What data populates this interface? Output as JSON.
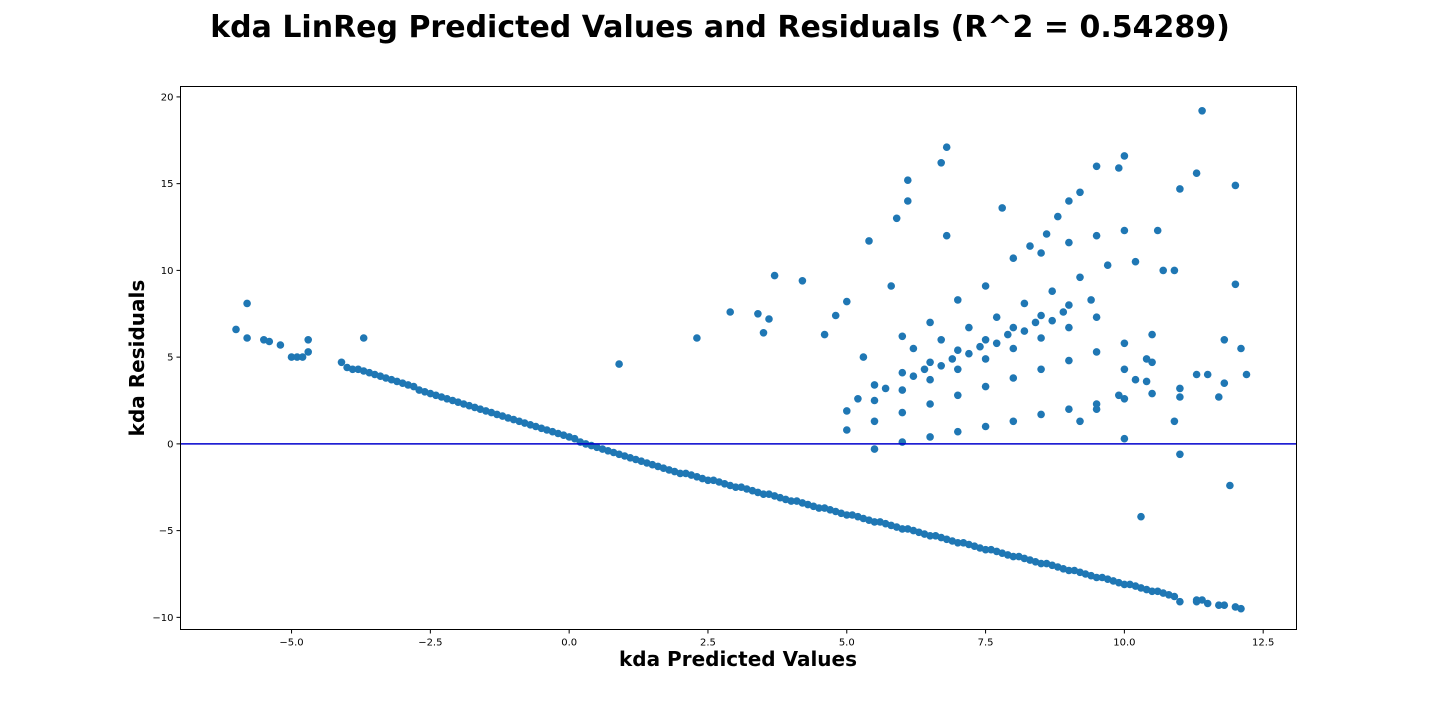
{
  "chart_data": {
    "type": "scatter",
    "title": "kda LinReg Predicted Values and Residuals (R^2 = 0.54289)",
    "xlabel": "kda Predicted Values",
    "ylabel": "kda Residuals",
    "xlim": [
      -7.0,
      13.1
    ],
    "ylim": [
      -10.7,
      20.6
    ],
    "xticks": [
      -5.0,
      -2.5,
      0.0,
      2.5,
      5.0,
      7.5,
      10.0,
      12.5
    ],
    "xtick_labels": [
      "−5.0",
      "−2.5",
      "0.0",
      "2.5",
      "5.0",
      "7.5",
      "10.0",
      "12.5"
    ],
    "yticks": [
      -10,
      -5,
      0,
      5,
      10,
      15,
      20
    ],
    "ytick_labels": [
      "−10",
      "−5",
      "0",
      "5",
      "10",
      "15",
      "20"
    ],
    "grid": false,
    "colors": {
      "points": "#1f77b4",
      "zero_line": "#0000cd"
    },
    "reference_line": {
      "y": 0
    },
    "points_x": [
      -6.0,
      -5.8,
      -5.8,
      -5.5,
      -5.4,
      -5.2,
      -5.0,
      -4.9,
      -4.8,
      -4.7,
      -4.7,
      -4.1,
      -4.0,
      -3.9,
      -3.8,
      -3.7,
      -3.7,
      -3.6,
      -3.5,
      -3.4,
      -3.3,
      -3.2,
      -3.1,
      -3.0,
      -2.9,
      -2.8,
      -2.7,
      -2.6,
      -2.5,
      -2.4,
      -2.3,
      -2.2,
      -2.1,
      -2.0,
      -1.9,
      -1.8,
      -1.7,
      -1.6,
      -1.5,
      -1.4,
      -1.3,
      -1.2,
      -1.1,
      -1.0,
      -0.9,
      -0.8,
      -0.7,
      -0.6,
      -0.5,
      -0.4,
      -0.3,
      -0.2,
      -0.1,
      0.0,
      0.1,
      0.2,
      0.3,
      0.4,
      0.5,
      0.6,
      0.7,
      0.8,
      0.9,
      1.0,
      1.1,
      1.2,
      1.3,
      1.4,
      1.5,
      1.6,
      1.7,
      1.8,
      1.9,
      2.0,
      2.1,
      2.2,
      2.3,
      2.4,
      2.5,
      2.6,
      2.7,
      2.8,
      2.9,
      3.0,
      3.1,
      3.2,
      3.3,
      3.4,
      3.5,
      3.6,
      3.7,
      3.8,
      3.9,
      4.0,
      4.1,
      4.2,
      4.3,
      4.4,
      4.5,
      4.6,
      4.7,
      4.8,
      4.9,
      5.0,
      5.1,
      5.2,
      5.3,
      5.4,
      5.5,
      5.6,
      5.7,
      5.8,
      5.9,
      6.0,
      6.1,
      6.2,
      6.3,
      6.4,
      6.5,
      6.6,
      6.7,
      6.8,
      6.9,
      7.0,
      7.1,
      7.2,
      7.3,
      7.4,
      7.5,
      7.6,
      7.7,
      7.8,
      7.9,
      8.0,
      8.1,
      8.2,
      8.3,
      8.4,
      8.5,
      8.6,
      8.7,
      8.8,
      8.9,
      9.0,
      9.1,
      9.2,
      9.3,
      9.4,
      9.5,
      9.6,
      9.7,
      9.8,
      9.9,
      10.0,
      10.1,
      10.2,
      10.3,
      10.4,
      10.5,
      10.6,
      10.7,
      10.8,
      10.9,
      11.0,
      11.3,
      11.3,
      11.4,
      11.5,
      11.7,
      11.8,
      12.0,
      12.1,
      12.2,
      0.9,
      2.3,
      2.9,
      3.4,
      3.5,
      3.6,
      3.7,
      4.2,
      4.6,
      4.8,
      5.0,
      5.3,
      5.4,
      5.8,
      5.9,
      6.1,
      6.1,
      6.7,
      6.8,
      6.8,
      7.8,
      8.3,
      8.6,
      8.8,
      9.0,
      9.2,
      9.5,
      9.9,
      10.0,
      10.2,
      10.4,
      10.6,
      10.7,
      11.0,
      11.3,
      11.4,
      11.7,
      11.8,
      12.0,
      12.1,
      6.0,
      6.5,
      7.0,
      7.5,
      8.0,
      8.5,
      9.0,
      9.5,
      10.0,
      10.5,
      6.2,
      6.7,
      7.2,
      7.7,
      8.2,
      8.7,
      9.2,
      9.7,
      10.2,
      6.4,
      6.9,
      7.4,
      7.9,
      8.4,
      8.9,
      9.4,
      9.9,
      5.5,
      6.0,
      6.5,
      7.0,
      7.5,
      8.0,
      8.5,
      9.0,
      9.5,
      5.2,
      5.7,
      6.2,
      6.7,
      7.2,
      7.7,
      8.2,
      8.7,
      9.2,
      5.0,
      5.5,
      6.0,
      6.5,
      7.0,
      7.5,
      8.0,
      8.5,
      9.0,
      9.5,
      10.0,
      5.0,
      5.5,
      6.0,
      6.5,
      7.0,
      7.5,
      8.0,
      8.5,
      9.0,
      9.5,
      10.0,
      10.5,
      11.0,
      5.5,
      6.0,
      6.5,
      7.0,
      7.5,
      8.0,
      8.5,
      9.0,
      9.5,
      10.0,
      10.5,
      11.0,
      11.5,
      10.0,
      10.4,
      10.9,
      11.3,
      12.0,
      10.9,
      11.0,
      11.8,
      11.9,
      10.3,
      10.6
    ],
    "points_y": [
      6.6,
      6.1,
      8.1,
      6.0,
      5.9,
      5.7,
      5.0,
      5.0,
      5.0,
      5.3,
      6.0,
      4.7,
      4.4,
      4.3,
      4.3,
      4.2,
      6.1,
      4.1,
      4.0,
      3.9,
      3.8,
      3.7,
      3.6,
      3.5,
      3.4,
      3.3,
      3.1,
      3.0,
      2.9,
      2.8,
      2.7,
      2.6,
      2.5,
      2.4,
      2.3,
      2.2,
      2.1,
      2.0,
      1.9,
      1.8,
      1.7,
      1.6,
      1.5,
      1.4,
      1.3,
      1.2,
      1.1,
      1.0,
      0.9,
      0.8,
      0.7,
      0.6,
      0.5,
      0.4,
      0.3,
      0.1,
      0.0,
      -0.1,
      -0.2,
      -0.3,
      -0.4,
      -0.5,
      -0.6,
      -0.7,
      -0.8,
      -0.9,
      -1.0,
      -1.1,
      -1.2,
      -1.3,
      -1.4,
      -1.5,
      -1.6,
      -1.7,
      -1.7,
      -1.8,
      -1.9,
      -2.0,
      -2.1,
      -2.1,
      -2.2,
      -2.3,
      -2.4,
      -2.5,
      -2.5,
      -2.6,
      -2.7,
      -2.8,
      -2.9,
      -2.9,
      -3.0,
      -3.1,
      -3.2,
      -3.3,
      -3.3,
      -3.4,
      -3.5,
      -3.6,
      -3.7,
      -3.7,
      -3.8,
      -3.9,
      -4.0,
      -4.1,
      -4.1,
      -4.2,
      -4.3,
      -4.4,
      -4.5,
      -4.5,
      -4.6,
      -4.7,
      -4.8,
      -4.9,
      -4.9,
      -5.0,
      -5.1,
      -5.2,
      -5.3,
      -5.3,
      -5.4,
      -5.5,
      -5.6,
      -5.7,
      -5.7,
      -5.8,
      -5.9,
      -6.0,
      -6.1,
      -6.1,
      -6.2,
      -6.3,
      -6.4,
      -6.5,
      -6.5,
      -6.6,
      -6.7,
      -6.8,
      -6.9,
      -6.9,
      -7.0,
      -7.1,
      -7.2,
      -7.3,
      -7.3,
      -7.4,
      -7.5,
      -7.6,
      -7.7,
      -7.7,
      -7.8,
      -7.9,
      -8.0,
      -8.1,
      -8.1,
      -8.2,
      -8.3,
      -8.4,
      -8.5,
      -8.5,
      -8.6,
      -8.7,
      -8.8,
      -9.1,
      -9.0,
      -9.1,
      -9.0,
      -9.2,
      -9.3,
      -9.3,
      -9.4,
      -9.5,
      4.0,
      4.6,
      6.1,
      7.6,
      7.5,
      6.4,
      7.2,
      9.7,
      9.4,
      6.3,
      7.4,
      8.2,
      5.0,
      11.7,
      9.1,
      13.0,
      14.0,
      15.2,
      16.2,
      12.0,
      17.1,
      13.6,
      11.4,
      12.1,
      13.1,
      14.0,
      14.5,
      16.0,
      15.9,
      16.6,
      10.5,
      4.9,
      12.3,
      10.0,
      14.7,
      15.6,
      19.2,
      2.7,
      6.0,
      14.9,
      5.5,
      6.2,
      7.0,
      8.3,
      9.1,
      10.7,
      11.0,
      11.6,
      12.0,
      12.3,
      4.7,
      5.5,
      6.0,
      6.7,
      7.3,
      8.1,
      8.8,
      9.6,
      10.3,
      3.7,
      4.3,
      4.9,
      5.6,
      6.3,
      7.0,
      7.6,
      8.3,
      2.8,
      3.4,
      4.1,
      4.7,
      5.4,
      6.0,
      6.7,
      7.4,
      8.0,
      2.0,
      2.6,
      3.2,
      3.9,
      4.5,
      5.2,
      5.8,
      6.5,
      7.1,
      1.3,
      1.9,
      2.5,
      3.1,
      3.7,
      4.3,
      4.9,
      5.5,
      6.1,
      6.7,
      7.3,
      0.3,
      0.8,
      1.3,
      1.8,
      2.3,
      2.8,
      3.3,
      3.8,
      4.3,
      4.8,
      5.3,
      5.8,
      6.3,
      -0.6,
      -0.3,
      0.1,
      0.4,
      0.7,
      1.0,
      1.3,
      1.7,
      2.0,
      2.3,
      2.6,
      2.9,
      3.2,
      4.0,
      4.3,
      3.6,
      1.3,
      4.0,
      9.2,
      10.0,
      2.7,
      3.5,
      -2.4,
      -4.2
    ]
  }
}
